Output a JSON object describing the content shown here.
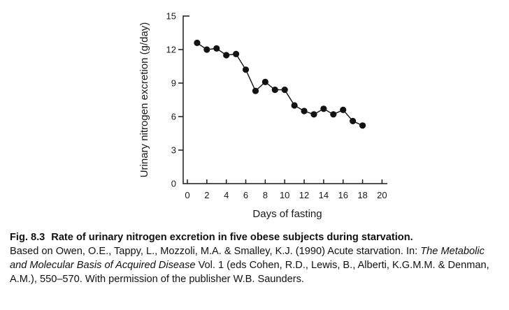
{
  "figure": {
    "caption": {
      "fig_label": "Fig. 8.3",
      "title": "Rate of urinary nitrogen excretion in five obese subjects during starvation.",
      "body_before_italic": "Based on Owen, O.E., Tappy, L., Mozzoli, M.A. & Smalley, K.J. (1990) Acute starvation. In: ",
      "book_title": "The Metabolic and Molecular Basis of Acquired Disease",
      "body_after_italic": " Vol. 1 (eds Cohen, R.D., Lewis, B., Alberti, K.G.M.M. & Denman, A.M.), 550–570. With permission of the publisher W.B. Saunders."
    }
  },
  "chart_data": {
    "type": "line",
    "title": "",
    "xlabel": "Days of fasting",
    "ylabel": "Urinary nitrogen excretion (g/day)",
    "x": [
      1,
      2,
      3,
      4,
      5,
      6,
      7,
      8,
      9,
      10,
      11,
      12,
      13,
      14,
      15,
      16,
      17,
      18
    ],
    "y": [
      12.6,
      12.0,
      12.1,
      11.5,
      11.6,
      10.2,
      8.3,
      9.1,
      8.4,
      8.4,
      7.0,
      6.5,
      6.2,
      6.7,
      6.2,
      6.6,
      5.6,
      5.2
    ],
    "xlim": [
      0,
      20
    ],
    "ylim": [
      0,
      15
    ],
    "xticks": [
      0,
      2,
      4,
      6,
      8,
      10,
      12,
      14,
      16,
      18,
      20
    ],
    "yticks": [
      0,
      3,
      6,
      9,
      12,
      15
    ],
    "grid": false,
    "legend": null,
    "marker": "filled-circle",
    "colors": {
      "line": "#111111",
      "marker": "#111111",
      "axis": "#1a1a1a",
      "text": "#1a1a1a",
      "background": "#ffffff"
    }
  }
}
